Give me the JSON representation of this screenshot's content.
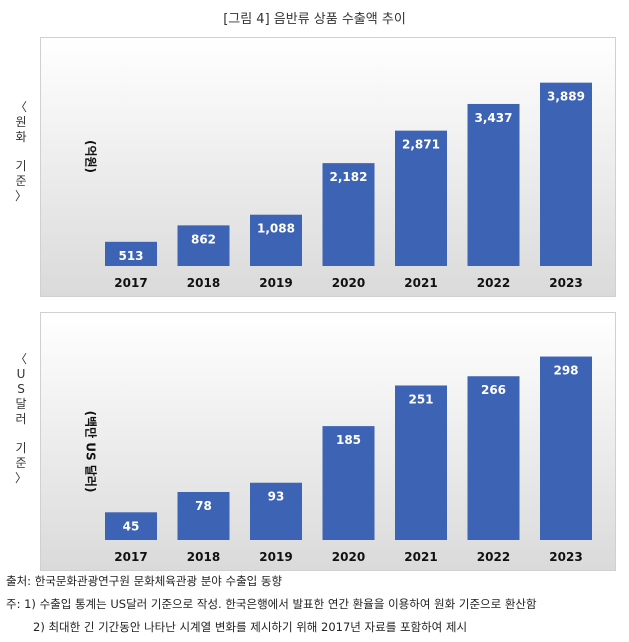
{
  "figure_title": "[그림 4] 음반류 상품 수출액 추이",
  "chart_data": [
    {
      "type": "bar",
      "side_label": [
        "〈",
        "원",
        "화",
        "",
        "기",
        "준",
        "〉"
      ],
      "unit_label": "(억원)",
      "categories": [
        "2017",
        "2018",
        "2019",
        "2020",
        "2021",
        "2022",
        "2023"
      ],
      "values": [
        513,
        862,
        1088,
        2182,
        2871,
        3437,
        3889
      ],
      "value_labels": [
        "513",
        "862",
        "1,088",
        "2,182",
        "2,871",
        "3,437",
        "3,889"
      ],
      "ylim": [
        0,
        4200
      ],
      "bar_color": "#3d63b4"
    },
    {
      "type": "bar",
      "side_label": [
        "〈",
        "U",
        "S",
        "달",
        "러",
        "",
        "기",
        "준",
        "〉"
      ],
      "unit_label": "(백만 US 달러)",
      "categories": [
        "2017",
        "2018",
        "2019",
        "2020",
        "2021",
        "2022",
        "2023"
      ],
      "values": [
        45,
        78,
        93,
        185,
        251,
        266,
        298
      ],
      "value_labels": [
        "45",
        "78",
        "93",
        "185",
        "251",
        "266",
        "298"
      ],
      "ylim": [
        0,
        320
      ],
      "bar_color": "#3d63b4"
    }
  ],
  "footer": {
    "source": "출처: 한국문화관광연구원 문화체육관광 분야 수출입 동향",
    "note1": "주: 1) 수출입 통계는 US달러 기준으로 작성. 한국은행에서 발표한 연간 환율을 이용하여 원화 기준으로 환산함",
    "note2": "2) 최대한 긴 기간동안 나타난 시계열 변화를 제시하기 위해 2017년 자료를 포함하여 제시"
  }
}
